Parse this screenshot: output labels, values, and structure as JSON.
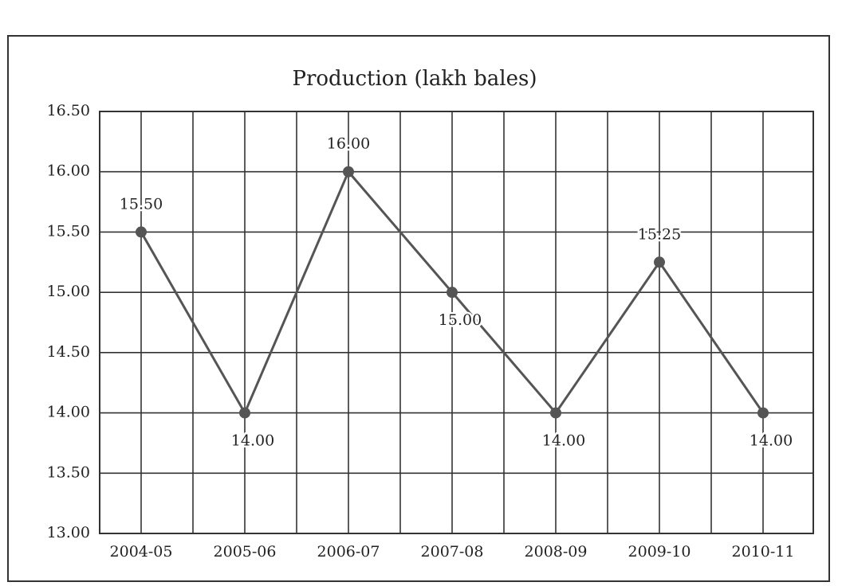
{
  "chart_data": {
    "type": "line",
    "title": "Production (lakh bales)",
    "categories": [
      "2004-05",
      "2005-06",
      "2006-07",
      "2007-08",
      "2008-09",
      "2009-10",
      "2010-11"
    ],
    "series": [
      {
        "name": "Production",
        "color": "#555555",
        "values": [
          15.5,
          14,
          16,
          15,
          14,
          15.25,
          14
        ],
        "value_labels": [
          "15.50",
          "14.00",
          "16.00",
          "15.00",
          "14.00",
          "15.25",
          "14.00"
        ]
      }
    ],
    "ylim": [
      13,
      16.5
    ],
    "yticks": [
      {
        "value": 13,
        "label": "13.00"
      },
      {
        "value": 13.5,
        "label": "13.50"
      },
      {
        "value": 14,
        "label": "14.00"
      },
      {
        "value": 14.5,
        "label": "14.50"
      },
      {
        "value": 15,
        "label": "15.00"
      },
      {
        "value": 15.5,
        "label": "15.50"
      },
      {
        "value": 16,
        "label": "16.00"
      },
      {
        "value": 16.5,
        "label": "16.50"
      }
    ],
    "grid": true
  }
}
